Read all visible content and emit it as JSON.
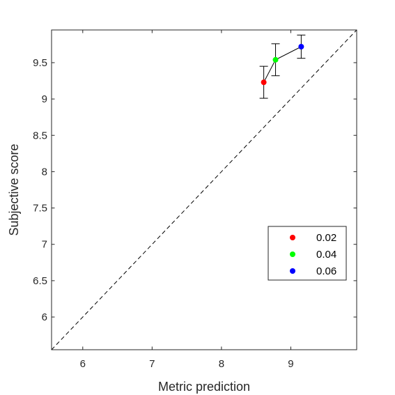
{
  "chart_data": {
    "type": "scatter",
    "xlabel": "Metric prediction",
    "ylabel": "Subjective score",
    "xlim": [
      5.55,
      9.95
    ],
    "ylim": [
      5.55,
      9.95
    ],
    "xticks": [
      6,
      7,
      8,
      9
    ],
    "yticks": [
      6,
      6.5,
      7,
      7.5,
      8,
      8.5,
      9,
      9.5
    ],
    "xtick_labels": [
      "6",
      "7",
      "8",
      "9"
    ],
    "ytick_labels": [
      "6",
      "6.5",
      "7",
      "7.5",
      "8",
      "8.5",
      "9",
      "9.5"
    ],
    "grid": false,
    "identity_line": true,
    "connect_points": true,
    "legend_position": "lower-right",
    "series": [
      {
        "name": "0.02",
        "x": 8.61,
        "y": 9.23,
        "err_low": 9.01,
        "err_high": 9.45,
        "color": "#ff0000"
      },
      {
        "name": "0.04",
        "x": 8.78,
        "y": 9.54,
        "err_low": 9.32,
        "err_high": 9.76,
        "color": "#00ff00"
      },
      {
        "name": "0.06",
        "x": 9.15,
        "y": 9.72,
        "err_low": 9.56,
        "err_high": 9.88,
        "color": "#0000ff"
      }
    ]
  }
}
